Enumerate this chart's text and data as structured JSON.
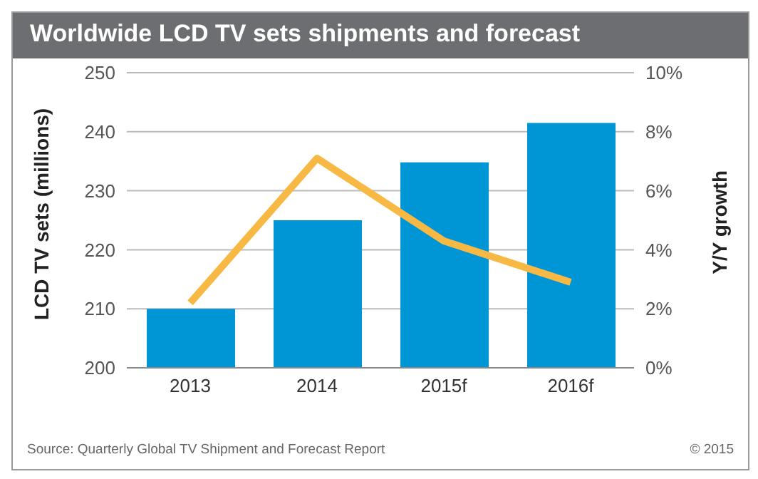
{
  "chart_data": {
    "type": "bar",
    "title": "Worldwide LCD TV sets shipments and forecast",
    "categories": [
      "2013",
      "2014",
      "2015f",
      "2016f"
    ],
    "series": [
      {
        "color": "#0095d5",
        "values": [
          210,
          225,
          234.8,
          241.5
        ]
      },
      {
        "type": "line",
        "color": "#f8b944",
        "axis": "y2",
        "values": [
          2.2,
          7.1,
          4.3,
          2.9
        ]
      }
    ],
    "ylabel": "LCD TV sets (millions)",
    "y2label": "Y/Y growth",
    "ylim": [
      200,
      250
    ],
    "yticks": [
      200,
      210,
      220,
      230,
      240,
      250
    ],
    "y2lim": [
      0,
      10
    ],
    "y2ticks": [
      {
        "value": 0,
        "label": "0%"
      },
      {
        "value": 2,
        "label": "2%"
      },
      {
        "value": 4,
        "label": "4%"
      },
      {
        "value": 6,
        "label": "6%"
      },
      {
        "value": 8,
        "label": "8%"
      },
      {
        "value": 10,
        "label": "10%"
      }
    ],
    "grid": "y",
    "marker": "none",
    "line_style": "solid",
    "legend": false,
    "annotations": [
      "Source: Quarterly Global TV Shipment and Forecast Report",
      "© 2015"
    ]
  }
}
